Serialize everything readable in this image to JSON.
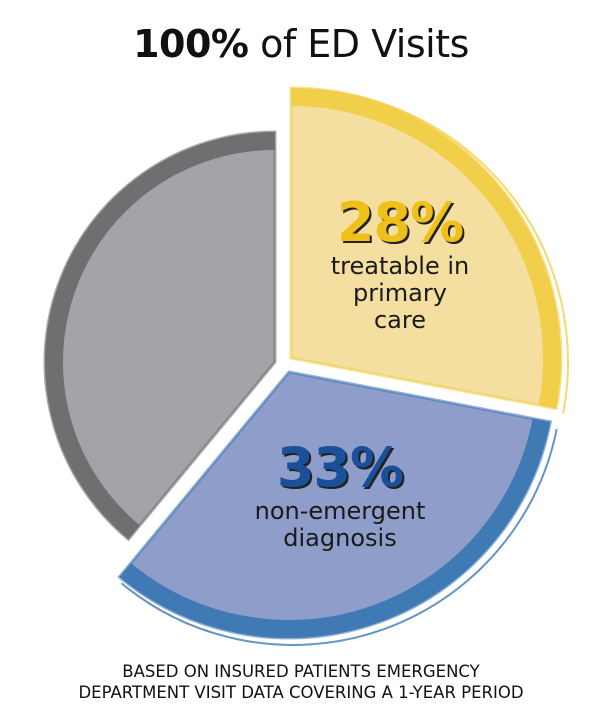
{
  "title": {
    "bold": "100%",
    "rest": " of ED Visits"
  },
  "chart_data": {
    "type": "pie",
    "title": "100% of ED Visits",
    "slices": [
      {
        "label": "treatable in primary care",
        "value": 28,
        "display": "28%",
        "fill": "#f5dfa0",
        "band": "#f2cf4a",
        "text": "#f0c01a"
      },
      {
        "label": "non-emergent diagnosis",
        "value": 33,
        "display": "33%",
        "fill": "#8e9dc9",
        "band": "#3f7ab5",
        "text": "#1a4f99"
      },
      {
        "label": "",
        "value": 39,
        "display": "",
        "fill": "#a3a4a8",
        "band": "#6f6f72",
        "text": "#333333"
      }
    ],
    "exploded": true
  },
  "footer": {
    "line1": "BASED ON INSURED PATIENTS EMERGENCY",
    "line2": "DEPARTMENT VISIT DATA COVERING A 1-YEAR PERIOD"
  }
}
